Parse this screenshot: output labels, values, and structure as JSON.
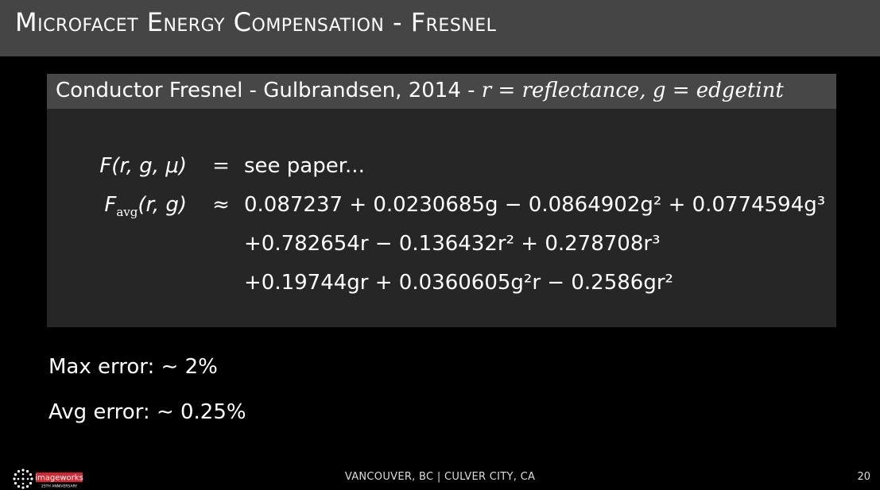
{
  "slide": {
    "title": "Microfacet Energy Compensation - Fresnel"
  },
  "block": {
    "title_text": "Conductor Fresnel - Gulbrandsen, 2014 - ",
    "title_math": "r = reflectance, g = edgetint"
  },
  "equations": {
    "row1": {
      "lhs": "F(r, g, μ)",
      "rel": "=",
      "rhs": "see paper..."
    },
    "row2": {
      "lhs_main": "F",
      "lhs_sub": "avg",
      "lhs_args": "(r, g)",
      "rel": "≈",
      "rhs": "0.087237 + 0.0230685g − 0.0864902g² + 0.0774594g³"
    },
    "row3": {
      "rhs": "+0.782654r − 0.136432r² + 0.278708r³"
    },
    "row4": {
      "rhs": "+0.19744gr + 0.0360605g²r − 0.2586gr²"
    }
  },
  "stats": {
    "max_error": "Max error: ∼ 2%",
    "avg_error": "Avg error: ∼ 0.25%"
  },
  "footer": {
    "locations": "VANCOUVER, BC | CULVER CITY, CA",
    "page_number": "20",
    "logo_text": "imageworks",
    "logo_tag": "25TH ANNIVERSARY"
  },
  "colors": {
    "background": "#000000",
    "title_bar": "#454545",
    "block_body": "#262626",
    "block_header": "#474747",
    "logo_red": "#d8242e"
  }
}
